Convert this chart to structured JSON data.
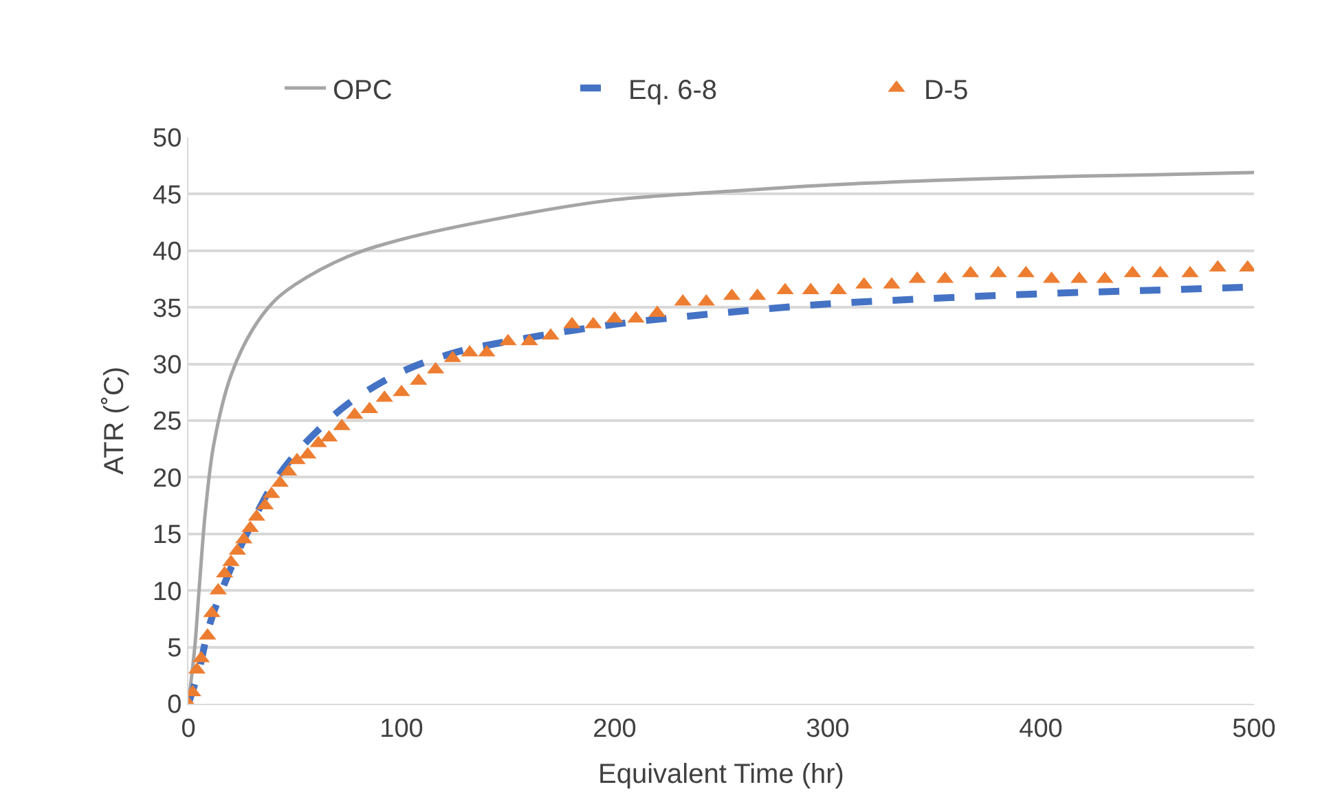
{
  "chart_data": {
    "type": "line",
    "xlabel": "Equivalent Time (hr)",
    "ylabel": "ATR (˚C)",
    "xlim": [
      0,
      500
    ],
    "xticks": [
      0,
      100,
      200,
      300,
      400,
      500
    ],
    "ylim": [
      0,
      50
    ],
    "yticks": [
      0,
      5,
      10,
      15,
      20,
      25,
      30,
      35,
      40,
      45,
      50
    ],
    "grid": "y",
    "legend": "top",
    "series": [
      {
        "name": "OPC",
        "color": "#a5a5a5",
        "line_style": "solid",
        "x": [
          0,
          3,
          5,
          8,
          12,
          20,
          30,
          40,
          50,
          75,
          100,
          150,
          200,
          250,
          300,
          350,
          400,
          450,
          500
        ],
        "values": [
          0,
          5,
          10,
          17,
          23,
          29,
          33,
          35.5,
          37,
          39.5,
          41,
          43,
          44.5,
          45.2,
          45.8,
          46.2,
          46.5,
          46.7,
          46.9
        ]
      },
      {
        "name": "Eq. 6-8",
        "color": "#4472c4",
        "line_style": "dashed",
        "x": [
          0,
          5,
          10,
          20,
          30,
          40,
          50,
          60,
          75,
          100,
          125,
          150,
          200,
          250,
          300,
          350,
          400,
          450,
          500
        ],
        "values": [
          0,
          3,
          7,
          12,
          16,
          19.5,
          22,
          24,
          26.5,
          29.3,
          31,
          32,
          33.5,
          34.5,
          35.3,
          35.8,
          36.2,
          36.5,
          36.8
        ]
      },
      {
        "name": "D-5",
        "type": "scatter",
        "marker": "triangle",
        "color": "#ed7d31",
        "x": [
          0,
          2,
          4,
          6,
          9,
          11,
          14,
          17,
          20,
          23,
          26,
          29,
          32,
          36,
          39,
          43,
          47,
          51,
          56,
          61,
          66,
          72,
          78,
          85,
          92,
          100,
          108,
          116,
          124,
          132,
          140,
          150,
          160,
          170,
          180,
          190,
          200,
          210,
          220,
          232,
          243,
          255,
          267,
          280,
          292,
          305,
          317,
          330,
          342,
          355,
          367,
          380,
          393,
          405,
          418,
          430,
          443,
          456,
          470,
          483,
          497
        ],
        "values": [
          0,
          1,
          3,
          4,
          6,
          8,
          10,
          11.5,
          12.5,
          13.5,
          14.5,
          15.5,
          16.5,
          17.5,
          18.5,
          19.5,
          20.5,
          21.5,
          22,
          23,
          23.5,
          24.5,
          25.5,
          26,
          27,
          27.5,
          28.5,
          29.5,
          30.5,
          31,
          31,
          32,
          32,
          32.5,
          33.5,
          33.5,
          34,
          34,
          34.5,
          35.5,
          35.5,
          36,
          36,
          36.5,
          36.5,
          36.5,
          37,
          37,
          37.5,
          37.5,
          38,
          38,
          38,
          37.5,
          37.5,
          37.5,
          38,
          38,
          38,
          38.5,
          38.5
        ]
      }
    ]
  }
}
